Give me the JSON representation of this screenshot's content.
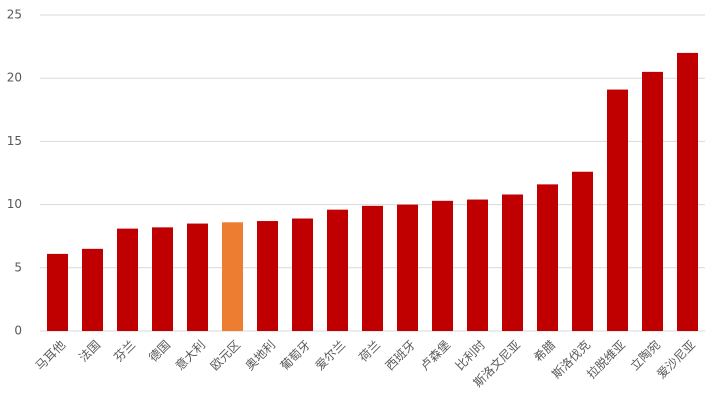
{
  "chart_data": {
    "type": "bar",
    "categories": [
      "马耳他",
      "法国",
      "芬兰",
      "德国",
      "意大利",
      "欧元区",
      "奥地利",
      "葡萄牙",
      "爱尔兰",
      "荷兰",
      "西班牙",
      "卢森堡",
      "比利时",
      "斯洛文尼亚",
      "希腊",
      "斯洛伐克",
      "拉脱维亚",
      "立陶宛",
      "爱沙尼亚"
    ],
    "values": [
      6.1,
      6.5,
      8.1,
      8.2,
      8.5,
      8.6,
      8.7,
      8.9,
      9.6,
      9.9,
      10.0,
      10.3,
      10.4,
      10.8,
      11.6,
      12.6,
      19.1,
      20.5,
      22.0
    ],
    "colors": [
      "#c00000",
      "#c00000",
      "#c00000",
      "#c00000",
      "#c00000",
      "#ed7d31",
      "#c00000",
      "#c00000",
      "#c00000",
      "#c00000",
      "#c00000",
      "#c00000",
      "#c00000",
      "#c00000",
      "#c00000",
      "#c00000",
      "#c00000",
      "#c00000",
      "#c00000"
    ],
    "ylim": [
      0,
      25
    ],
    "yticks": [
      0,
      5,
      10,
      15,
      20,
      25
    ],
    "grid": true
  }
}
